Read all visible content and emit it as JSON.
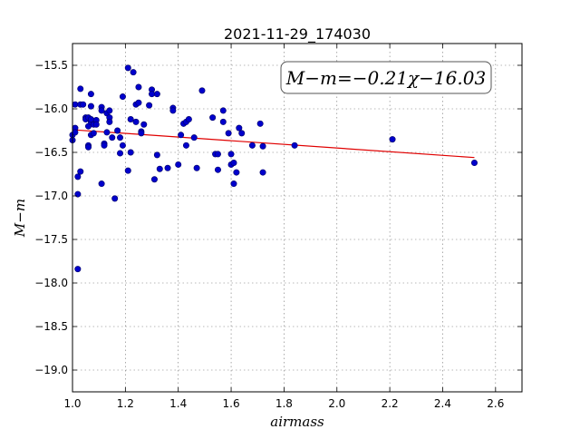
{
  "chart_data": {
    "type": "scatter",
    "title": "2021-11-29_174030",
    "xlabel": "airmass",
    "ylabel": "M−m",
    "xlim": [
      1.0,
      2.7
    ],
    "ylim": [
      -19.25,
      -15.25
    ],
    "y_inverted": true,
    "grid": true,
    "xticks": [
      1.0,
      1.2,
      1.4,
      1.6,
      1.8,
      2.0,
      2.2,
      2.4,
      2.6
    ],
    "xtick_labels": [
      "1.0",
      "1.2",
      "1.4",
      "1.6",
      "1.8",
      "2.0",
      "2.2",
      "2.4",
      "2.6"
    ],
    "yticks": [
      -15.5,
      -16.0,
      -16.5,
      -17.0,
      -17.5,
      -18.0,
      -18.5,
      -19.0
    ],
    "ytick_labels": [
      "−15.5",
      "−16.0",
      "−16.5",
      "−17.0",
      "−17.5",
      "−18.0",
      "−18.5",
      "−19.0"
    ],
    "annotation": "M−m=−0.21χ−16.03",
    "fit": {
      "slope": -0.21,
      "intercept": -16.03,
      "x_range": [
        1.0,
        2.52
      ],
      "color": "#e00000"
    },
    "point_color": "#0000cc",
    "series": [
      {
        "points": [
          [
            1.0,
            -16.3
          ],
          [
            1.0,
            -16.36
          ],
          [
            1.01,
            -16.22
          ],
          [
            1.01,
            -16.27
          ],
          [
            1.01,
            -15.95
          ],
          [
            1.02,
            -16.78
          ],
          [
            1.02,
            -16.98
          ],
          [
            1.02,
            -17.84
          ],
          [
            1.03,
            -15.77
          ],
          [
            1.03,
            -15.95
          ],
          [
            1.03,
            -16.72
          ],
          [
            1.04,
            -15.95
          ],
          [
            1.05,
            -16.1
          ],
          [
            1.05,
            -16.12
          ],
          [
            1.06,
            -16.1
          ],
          [
            1.06,
            -16.2
          ],
          [
            1.06,
            -16.42
          ],
          [
            1.06,
            -16.44
          ],
          [
            1.07,
            -16.15
          ],
          [
            1.07,
            -16.12
          ],
          [
            1.07,
            -15.83
          ],
          [
            1.07,
            -15.97
          ],
          [
            1.07,
            -16.3
          ],
          [
            1.08,
            -16.28
          ],
          [
            1.08,
            -16.18
          ],
          [
            1.09,
            -16.13
          ],
          [
            1.09,
            -16.18
          ],
          [
            1.11,
            -15.98
          ],
          [
            1.11,
            -16.02
          ],
          [
            1.11,
            -16.86
          ],
          [
            1.12,
            -16.4
          ],
          [
            1.12,
            -16.42
          ],
          [
            1.13,
            -16.05
          ],
          [
            1.13,
            -16.27
          ],
          [
            1.14,
            -16.02
          ],
          [
            1.14,
            -16.1
          ],
          [
            1.14,
            -16.15
          ],
          [
            1.15,
            -16.33
          ],
          [
            1.16,
            -17.03
          ],
          [
            1.17,
            -16.25
          ],
          [
            1.18,
            -16.51
          ],
          [
            1.18,
            -16.33
          ],
          [
            1.19,
            -16.42
          ],
          [
            1.19,
            -15.86
          ],
          [
            1.21,
            -15.53
          ],
          [
            1.21,
            -16.71
          ],
          [
            1.22,
            -16.5
          ],
          [
            1.22,
            -16.12
          ],
          [
            1.23,
            -15.58
          ],
          [
            1.24,
            -16.15
          ],
          [
            1.24,
            -15.95
          ],
          [
            1.25,
            -15.93
          ],
          [
            1.25,
            -15.75
          ],
          [
            1.26,
            -16.26
          ],
          [
            1.26,
            -16.28
          ],
          [
            1.27,
            -16.18
          ],
          [
            1.29,
            -15.96
          ],
          [
            1.3,
            -15.78
          ],
          [
            1.3,
            -15.83
          ],
          [
            1.31,
            -16.81
          ],
          [
            1.32,
            -15.83
          ],
          [
            1.32,
            -16.53
          ],
          [
            1.33,
            -16.69
          ],
          [
            1.36,
            -16.68
          ],
          [
            1.38,
            -15.99
          ],
          [
            1.38,
            -16.02
          ],
          [
            1.4,
            -16.64
          ],
          [
            1.41,
            -16.3
          ],
          [
            1.42,
            -16.17
          ],
          [
            1.43,
            -16.42
          ],
          [
            1.43,
            -16.15
          ],
          [
            1.44,
            -16.12
          ],
          [
            1.46,
            -16.33
          ],
          [
            1.47,
            -16.68
          ],
          [
            1.49,
            -15.79
          ],
          [
            1.53,
            -16.1
          ],
          [
            1.54,
            -16.52
          ],
          [
            1.55,
            -16.52
          ],
          [
            1.55,
            -16.7
          ],
          [
            1.57,
            -16.02
          ],
          [
            1.57,
            -16.15
          ],
          [
            1.59,
            -16.28
          ],
          [
            1.6,
            -16.52
          ],
          [
            1.6,
            -16.64
          ],
          [
            1.61,
            -16.86
          ],
          [
            1.61,
            -16.62
          ],
          [
            1.62,
            -16.73
          ],
          [
            1.63,
            -16.22
          ],
          [
            1.64,
            -16.28
          ],
          [
            1.68,
            -16.42
          ],
          [
            1.71,
            -16.17
          ],
          [
            1.72,
            -16.73
          ],
          [
            1.72,
            -16.43
          ],
          [
            1.84,
            -16.42
          ],
          [
            2.21,
            -16.35
          ],
          [
            2.52,
            -16.62
          ]
        ]
      }
    ]
  }
}
